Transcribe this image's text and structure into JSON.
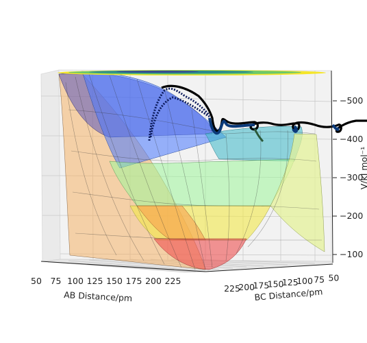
{
  "chart_data": {
    "type": "surface3d",
    "title": "",
    "xlabel": "AB Distance/pm",
    "ylabel": "BC Distance/pm",
    "zlabel": "V/kJ mol⁻¹",
    "x_ticks": [
      "50",
      "75",
      "100",
      "125",
      "150",
      "175",
      "200",
      "225"
    ],
    "y_ticks": [
      "225",
      "200",
      "175",
      "150",
      "125",
      "100",
      "75",
      "50"
    ],
    "z_ticks": [
      "−500",
      "−400",
      "−300",
      "−200",
      "−100"
    ],
    "z_range": [
      -80,
      -570
    ],
    "colormap": "jet",
    "contour_colormap": "viridis",
    "trajectory": {
      "color": "#000000",
      "start_color": "#0b1a5c",
      "description": "dot-trajectory",
      "z_band": [
        -400,
        -540
      ]
    }
  }
}
